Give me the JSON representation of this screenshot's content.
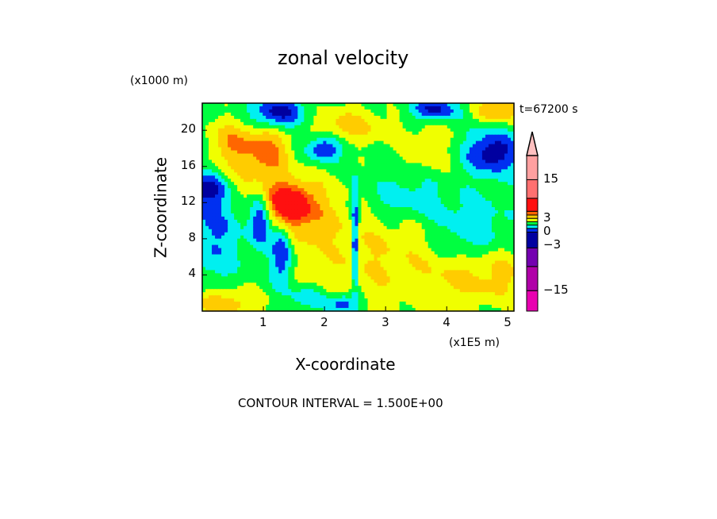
{
  "chart_data": {
    "type": "heatmap",
    "subtype": "filled-contour",
    "title": "zonal velocity",
    "xlabel": "X-coordinate",
    "ylabel": "Z-coordinate",
    "x_unit_label": "(x1E5 m)",
    "y_unit_label": "(x1000 m)",
    "time_label": "t=67200 s",
    "footer": "CONTOUR INTERVAL = 1.500E+00",
    "xlim": [
      0,
      5.1
    ],
    "ylim": [
      0,
      23
    ],
    "xticks": [
      1,
      2,
      3,
      4,
      5
    ],
    "xtick_labels": [
      "1",
      "2",
      "3",
      "4",
      "5"
    ],
    "yticks": [
      4,
      8,
      12,
      16,
      20
    ],
    "ytick_labels": [
      "4",
      "8",
      "12",
      "16",
      "20"
    ],
    "base_value": 0.8,
    "approximate_features": [
      {
        "x": 2.9,
        "z": 6,
        "sx": 0.9,
        "sz": 5,
        "amp": 2.2
      },
      {
        "x": 0.15,
        "z": 9,
        "sx": 0.35,
        "sz": 4,
        "amp": -2.6
      },
      {
        "x": 0.05,
        "z": 13.5,
        "sx": 0.25,
        "sz": 1.2,
        "amp": -3.5
      },
      {
        "x": 0.5,
        "z": 18.5,
        "sx": 0.3,
        "sz": 2,
        "amp": 3.5
      },
      {
        "x": 1.1,
        "z": 18,
        "sx": 0.25,
        "sz": 2.5,
        "amp": 3.8
      },
      {
        "x": 1.4,
        "z": 11.8,
        "sx": 0.25,
        "sz": 1.5,
        "amp": 6.5
      },
      {
        "x": 1.7,
        "z": 11,
        "sx": 0.4,
        "sz": 3,
        "amp": 2.5
      },
      {
        "x": 0.95,
        "z": 10,
        "sx": 0.12,
        "sz": 2,
        "amp": -4.5
      },
      {
        "x": 1.3,
        "z": 6.5,
        "sx": 0.12,
        "sz": 2.5,
        "amp": -4.5
      },
      {
        "x": 1.2,
        "z": 21.8,
        "sx": 0.3,
        "sz": 1.3,
        "amp": -5.5
      },
      {
        "x": 2.0,
        "z": 18,
        "sx": 0.2,
        "sz": 1,
        "amp": -4.5
      },
      {
        "x": 3.3,
        "z": 12.5,
        "sx": 0.5,
        "sz": 2,
        "amp": -2.2
      },
      {
        "x": 4.75,
        "z": 17.5,
        "sx": 0.3,
        "sz": 1.6,
        "amp": -5
      },
      {
        "x": 4.9,
        "z": 22.3,
        "sx": 0.3,
        "sz": 1,
        "amp": 4
      },
      {
        "x": 0.35,
        "z": 0.8,
        "sx": 0.4,
        "sz": 1.2,
        "amp": 3.5
      },
      {
        "x": 2.3,
        "z": 0.8,
        "sx": 0.2,
        "sz": 0.8,
        "amp": -4
      },
      {
        "x": 1.7,
        "z": 1.5,
        "sx": 0.2,
        "sz": 0.8,
        "amp": -2.5
      },
      {
        "x": 4.4,
        "z": 9,
        "sx": 0.45,
        "sz": 2.5,
        "amp": -2.2
      },
      {
        "x": 4.2,
        "z": 3.5,
        "sx": 0.4,
        "sz": 2,
        "amp": 1.8
      },
      {
        "x": 2.4,
        "z": 20.5,
        "sx": 0.45,
        "sz": 1.5,
        "amp": 2.8
      },
      {
        "x": 4.9,
        "z": 4,
        "sx": 0.3,
        "sz": 2.5,
        "amp": 2.2
      },
      {
        "x": 2.5,
        "z": 8,
        "sx": 0.04,
        "sz": 4,
        "amp": -5
      },
      {
        "x": 3.8,
        "z": 22.3,
        "sx": 0.25,
        "sz": 0.8,
        "amp": -4.5
      },
      {
        "x": 0.7,
        "z": 14,
        "sx": 0.3,
        "sz": 2,
        "amp": 1.5
      },
      {
        "x": 3.7,
        "z": 18,
        "sx": 0.3,
        "sz": 2,
        "amp": 1.8
      }
    ],
    "levels": [
      -18,
      -15,
      -10.5,
      -6,
      -3,
      -1.5,
      0,
      1.5,
      3,
      4.5,
      6,
      10.5,
      15,
      18
    ],
    "level_colors": [
      "#e800b0",
      "#b000a8",
      "#7400b0",
      "#0000a0",
      "#0030f0",
      "#00f0f0",
      "#00ff40",
      "#f0ff00",
      "#ffcc00",
      "#ff6600",
      "#ff1010",
      "#ff7070",
      "#ffa0a0",
      "#ffc0c0"
    ],
    "colorbar_labels": [
      {
        "value": 15,
        "text": "15"
      },
      {
        "value": 3,
        "text": "3"
      },
      {
        "value": 0,
        "text": "0"
      },
      {
        "value": -3,
        "text": "-3"
      },
      {
        "value": -15,
        "text": "-15"
      }
    ]
  }
}
